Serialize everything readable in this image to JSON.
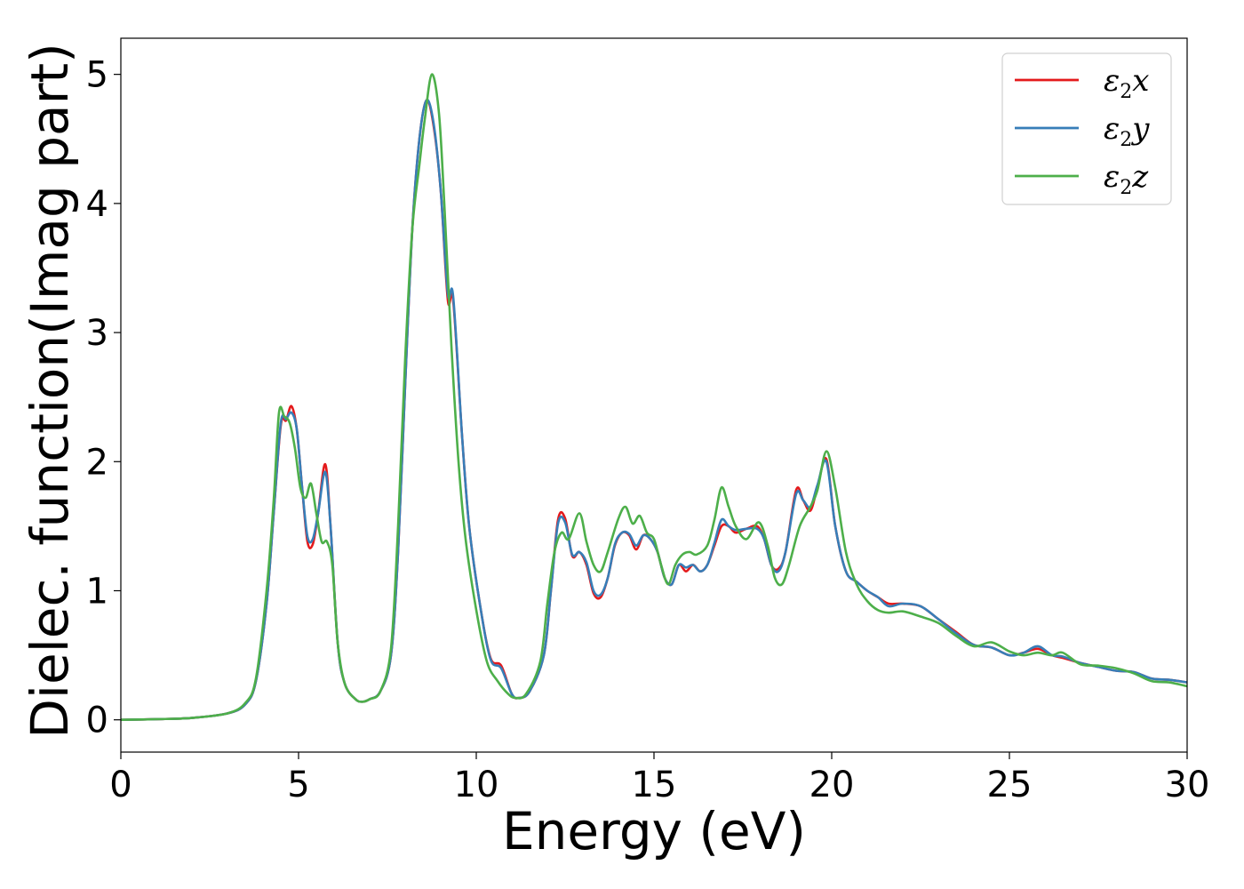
{
  "chart_data": {
    "type": "line",
    "title": "",
    "xlabel": "Energy (eV)",
    "ylabel": "Dielec. function(Imag part)",
    "xlim": [
      0,
      30
    ],
    "ylim": [
      -0.25,
      5.28
    ],
    "xticks": [
      "0",
      "5",
      "10",
      "15",
      "20",
      "25",
      "30"
    ],
    "yticks": [
      "0",
      "1",
      "2",
      "3",
      "4",
      "5"
    ],
    "grid": false,
    "legend_position": "top-right",
    "series": [
      {
        "name": "ε₂x",
        "legend_base": "ε",
        "legend_sub": "2",
        "legend_var": "x",
        "color": "#e41a1c",
        "points": [
          [
            0,
            0
          ],
          [
            1,
            0.005
          ],
          [
            2,
            0.015
          ],
          [
            3,
            0.05
          ],
          [
            3.5,
            0.12
          ],
          [
            3.8,
            0.3
          ],
          [
            4.1,
            0.9
          ],
          [
            4.3,
            1.6
          ],
          [
            4.5,
            2.28
          ],
          [
            4.65,
            2.32
          ],
          [
            4.8,
            2.43
          ],
          [
            4.95,
            2.25
          ],
          [
            5.1,
            1.8
          ],
          [
            5.25,
            1.38
          ],
          [
            5.4,
            1.36
          ],
          [
            5.55,
            1.6
          ],
          [
            5.75,
            1.98
          ],
          [
            5.9,
            1.5
          ],
          [
            6.1,
            0.6
          ],
          [
            6.3,
            0.28
          ],
          [
            6.6,
            0.16
          ],
          [
            6.8,
            0.14
          ],
          [
            7.0,
            0.16
          ],
          [
            7.3,
            0.22
          ],
          [
            7.6,
            0.5
          ],
          [
            7.8,
            1.3
          ],
          [
            8.0,
            2.6
          ],
          [
            8.2,
            3.8
          ],
          [
            8.4,
            4.5
          ],
          [
            8.6,
            4.8
          ],
          [
            8.8,
            4.6
          ],
          [
            9.0,
            4.1
          ],
          [
            9.2,
            3.25
          ],
          [
            9.35,
            3.25
          ],
          [
            9.6,
            2.2
          ],
          [
            9.8,
            1.5
          ],
          [
            10.1,
            0.9
          ],
          [
            10.4,
            0.48
          ],
          [
            10.7,
            0.42
          ],
          [
            11.0,
            0.2
          ],
          [
            11.2,
            0.17
          ],
          [
            11.5,
            0.22
          ],
          [
            11.9,
            0.5
          ],
          [
            12.1,
            1.0
          ],
          [
            12.3,
            1.55
          ],
          [
            12.5,
            1.56
          ],
          [
            12.7,
            1.27
          ],
          [
            12.9,
            1.3
          ],
          [
            13.1,
            1.2
          ],
          [
            13.3,
            0.98
          ],
          [
            13.5,
            0.95
          ],
          [
            13.7,
            1.1
          ],
          [
            13.9,
            1.35
          ],
          [
            14.1,
            1.45
          ],
          [
            14.3,
            1.43
          ],
          [
            14.5,
            1.32
          ],
          [
            14.7,
            1.43
          ],
          [
            14.9,
            1.4
          ],
          [
            15.1,
            1.3
          ],
          [
            15.3,
            1.1
          ],
          [
            15.5,
            1.05
          ],
          [
            15.7,
            1.2
          ],
          [
            15.9,
            1.15
          ],
          [
            16.1,
            1.2
          ],
          [
            16.3,
            1.15
          ],
          [
            16.5,
            1.2
          ],
          [
            16.7,
            1.35
          ],
          [
            16.9,
            1.5
          ],
          [
            17.1,
            1.5
          ],
          [
            17.3,
            1.45
          ],
          [
            17.6,
            1.48
          ],
          [
            17.9,
            1.5
          ],
          [
            18.1,
            1.4
          ],
          [
            18.3,
            1.2
          ],
          [
            18.5,
            1.17
          ],
          [
            18.7,
            1.3
          ],
          [
            19.0,
            1.78
          ],
          [
            19.2,
            1.7
          ],
          [
            19.4,
            1.62
          ],
          [
            19.6,
            1.8
          ],
          [
            19.85,
            2.02
          ],
          [
            20.1,
            1.5
          ],
          [
            20.4,
            1.15
          ],
          [
            20.7,
            1.07
          ],
          [
            21.0,
            1.0
          ],
          [
            21.3,
            0.95
          ],
          [
            21.6,
            0.9
          ],
          [
            22.0,
            0.9
          ],
          [
            22.5,
            0.88
          ],
          [
            23.0,
            0.78
          ],
          [
            23.5,
            0.68
          ],
          [
            24.0,
            0.58
          ],
          [
            24.5,
            0.56
          ],
          [
            25.0,
            0.5
          ],
          [
            25.4,
            0.52
          ],
          [
            25.8,
            0.55
          ],
          [
            26.2,
            0.5
          ],
          [
            26.5,
            0.48
          ],
          [
            27.0,
            0.44
          ],
          [
            27.5,
            0.41
          ],
          [
            28.0,
            0.38
          ],
          [
            28.5,
            0.37
          ],
          [
            29.0,
            0.32
          ],
          [
            29.5,
            0.31
          ],
          [
            30.0,
            0.29
          ]
        ]
      },
      {
        "name": "ε₂y",
        "legend_base": "ε",
        "legend_sub": "2",
        "legend_var": "y",
        "color": "#377eb8",
        "points": [
          [
            0,
            0
          ],
          [
            1,
            0.005
          ],
          [
            2,
            0.015
          ],
          [
            3,
            0.05
          ],
          [
            3.5,
            0.12
          ],
          [
            3.8,
            0.3
          ],
          [
            4.1,
            0.9
          ],
          [
            4.3,
            1.6
          ],
          [
            4.5,
            2.3
          ],
          [
            4.65,
            2.33
          ],
          [
            4.8,
            2.38
          ],
          [
            4.95,
            2.25
          ],
          [
            5.1,
            1.8
          ],
          [
            5.25,
            1.42
          ],
          [
            5.4,
            1.4
          ],
          [
            5.55,
            1.6
          ],
          [
            5.75,
            1.92
          ],
          [
            5.9,
            1.5
          ],
          [
            6.1,
            0.6
          ],
          [
            6.3,
            0.28
          ],
          [
            6.6,
            0.16
          ],
          [
            6.8,
            0.14
          ],
          [
            7.0,
            0.16
          ],
          [
            7.3,
            0.22
          ],
          [
            7.6,
            0.5
          ],
          [
            7.8,
            1.3
          ],
          [
            8.0,
            2.6
          ],
          [
            8.2,
            3.8
          ],
          [
            8.4,
            4.5
          ],
          [
            8.6,
            4.8
          ],
          [
            8.8,
            4.62
          ],
          [
            9.0,
            4.1
          ],
          [
            9.2,
            3.3
          ],
          [
            9.35,
            3.28
          ],
          [
            9.6,
            2.2
          ],
          [
            9.8,
            1.5
          ],
          [
            10.1,
            0.9
          ],
          [
            10.4,
            0.47
          ],
          [
            10.7,
            0.4
          ],
          [
            11.0,
            0.2
          ],
          [
            11.2,
            0.17
          ],
          [
            11.5,
            0.22
          ],
          [
            11.9,
            0.5
          ],
          [
            12.1,
            1.0
          ],
          [
            12.3,
            1.52
          ],
          [
            12.5,
            1.53
          ],
          [
            12.7,
            1.28
          ],
          [
            12.9,
            1.3
          ],
          [
            13.1,
            1.22
          ],
          [
            13.3,
            1.0
          ],
          [
            13.5,
            0.97
          ],
          [
            13.7,
            1.1
          ],
          [
            13.9,
            1.36
          ],
          [
            14.1,
            1.45
          ],
          [
            14.3,
            1.44
          ],
          [
            14.5,
            1.35
          ],
          [
            14.7,
            1.43
          ],
          [
            14.9,
            1.4
          ],
          [
            15.1,
            1.3
          ],
          [
            15.3,
            1.1
          ],
          [
            15.5,
            1.05
          ],
          [
            15.7,
            1.2
          ],
          [
            15.9,
            1.18
          ],
          [
            16.1,
            1.2
          ],
          [
            16.3,
            1.15
          ],
          [
            16.5,
            1.2
          ],
          [
            16.7,
            1.37
          ],
          [
            16.9,
            1.55
          ],
          [
            17.1,
            1.5
          ],
          [
            17.3,
            1.47
          ],
          [
            17.6,
            1.48
          ],
          [
            17.9,
            1.48
          ],
          [
            18.1,
            1.4
          ],
          [
            18.3,
            1.2
          ],
          [
            18.5,
            1.15
          ],
          [
            18.7,
            1.3
          ],
          [
            19.0,
            1.75
          ],
          [
            19.2,
            1.7
          ],
          [
            19.4,
            1.65
          ],
          [
            19.6,
            1.82
          ],
          [
            19.85,
            2.0
          ],
          [
            20.1,
            1.5
          ],
          [
            20.4,
            1.15
          ],
          [
            20.7,
            1.07
          ],
          [
            21.0,
            1.0
          ],
          [
            21.3,
            0.95
          ],
          [
            21.6,
            0.88
          ],
          [
            22.0,
            0.9
          ],
          [
            22.5,
            0.88
          ],
          [
            23.0,
            0.78
          ],
          [
            23.5,
            0.67
          ],
          [
            24.0,
            0.58
          ],
          [
            24.5,
            0.56
          ],
          [
            25.0,
            0.5
          ],
          [
            25.4,
            0.52
          ],
          [
            25.8,
            0.57
          ],
          [
            26.2,
            0.5
          ],
          [
            26.5,
            0.49
          ],
          [
            27.0,
            0.44
          ],
          [
            27.5,
            0.41
          ],
          [
            28.0,
            0.38
          ],
          [
            28.5,
            0.37
          ],
          [
            29.0,
            0.32
          ],
          [
            29.5,
            0.31
          ],
          [
            30.0,
            0.29
          ]
        ]
      },
      {
        "name": "ε₂z",
        "legend_base": "ε",
        "legend_sub": "2",
        "legend_var": "z",
        "color": "#4daf4a",
        "points": [
          [
            0,
            0
          ],
          [
            1,
            0.005
          ],
          [
            2,
            0.015
          ],
          [
            3,
            0.05
          ],
          [
            3.5,
            0.13
          ],
          [
            3.8,
            0.32
          ],
          [
            4.1,
            1.0
          ],
          [
            4.3,
            1.7
          ],
          [
            4.45,
            2.38
          ],
          [
            4.6,
            2.35
          ],
          [
            4.75,
            2.3
          ],
          [
            4.9,
            2.1
          ],
          [
            5.05,
            1.8
          ],
          [
            5.2,
            1.72
          ],
          [
            5.35,
            1.83
          ],
          [
            5.5,
            1.6
          ],
          [
            5.65,
            1.38
          ],
          [
            5.8,
            1.38
          ],
          [
            5.95,
            1.2
          ],
          [
            6.1,
            0.6
          ],
          [
            6.3,
            0.28
          ],
          [
            6.6,
            0.16
          ],
          [
            6.8,
            0.14
          ],
          [
            7.0,
            0.16
          ],
          [
            7.3,
            0.22
          ],
          [
            7.6,
            0.55
          ],
          [
            7.8,
            1.5
          ],
          [
            8.0,
            2.8
          ],
          [
            8.2,
            3.8
          ],
          [
            8.4,
            4.3
          ],
          [
            8.55,
            4.65
          ],
          [
            8.75,
            5.0
          ],
          [
            8.95,
            4.7
          ],
          [
            9.1,
            4.0
          ],
          [
            9.3,
            2.9
          ],
          [
            9.5,
            2.0
          ],
          [
            9.7,
            1.4
          ],
          [
            10.0,
            0.85
          ],
          [
            10.3,
            0.45
          ],
          [
            10.6,
            0.3
          ],
          [
            10.9,
            0.2
          ],
          [
            11.1,
            0.17
          ],
          [
            11.4,
            0.2
          ],
          [
            11.8,
            0.45
          ],
          [
            12.0,
            0.9
          ],
          [
            12.2,
            1.3
          ],
          [
            12.4,
            1.45
          ],
          [
            12.6,
            1.4
          ],
          [
            12.9,
            1.6
          ],
          [
            13.1,
            1.38
          ],
          [
            13.3,
            1.2
          ],
          [
            13.5,
            1.15
          ],
          [
            13.7,
            1.3
          ],
          [
            14.0,
            1.56
          ],
          [
            14.2,
            1.65
          ],
          [
            14.4,
            1.52
          ],
          [
            14.6,
            1.58
          ],
          [
            14.8,
            1.45
          ],
          [
            15.0,
            1.4
          ],
          [
            15.2,
            1.2
          ],
          [
            15.4,
            1.05
          ],
          [
            15.6,
            1.2
          ],
          [
            15.8,
            1.28
          ],
          [
            16.0,
            1.3
          ],
          [
            16.2,
            1.28
          ],
          [
            16.5,
            1.35
          ],
          [
            16.7,
            1.55
          ],
          [
            16.9,
            1.8
          ],
          [
            17.1,
            1.65
          ],
          [
            17.3,
            1.5
          ],
          [
            17.6,
            1.4
          ],
          [
            17.95,
            1.53
          ],
          [
            18.2,
            1.35
          ],
          [
            18.4,
            1.1
          ],
          [
            18.6,
            1.05
          ],
          [
            18.8,
            1.2
          ],
          [
            19.1,
            1.5
          ],
          [
            19.4,
            1.65
          ],
          [
            19.6,
            1.78
          ],
          [
            19.85,
            2.08
          ],
          [
            20.1,
            1.8
          ],
          [
            20.4,
            1.3
          ],
          [
            20.7,
            1.05
          ],
          [
            21.0,
            0.92
          ],
          [
            21.3,
            0.85
          ],
          [
            21.6,
            0.83
          ],
          [
            22.0,
            0.84
          ],
          [
            22.5,
            0.8
          ],
          [
            23.0,
            0.75
          ],
          [
            23.5,
            0.65
          ],
          [
            24.0,
            0.57
          ],
          [
            24.5,
            0.6
          ],
          [
            25.0,
            0.53
          ],
          [
            25.4,
            0.5
          ],
          [
            25.8,
            0.52
          ],
          [
            26.2,
            0.5
          ],
          [
            26.5,
            0.52
          ],
          [
            27.0,
            0.43
          ],
          [
            27.5,
            0.42
          ],
          [
            28.0,
            0.4
          ],
          [
            28.5,
            0.36
          ],
          [
            29.0,
            0.3
          ],
          [
            29.5,
            0.29
          ],
          [
            30.0,
            0.26
          ]
        ]
      }
    ]
  }
}
